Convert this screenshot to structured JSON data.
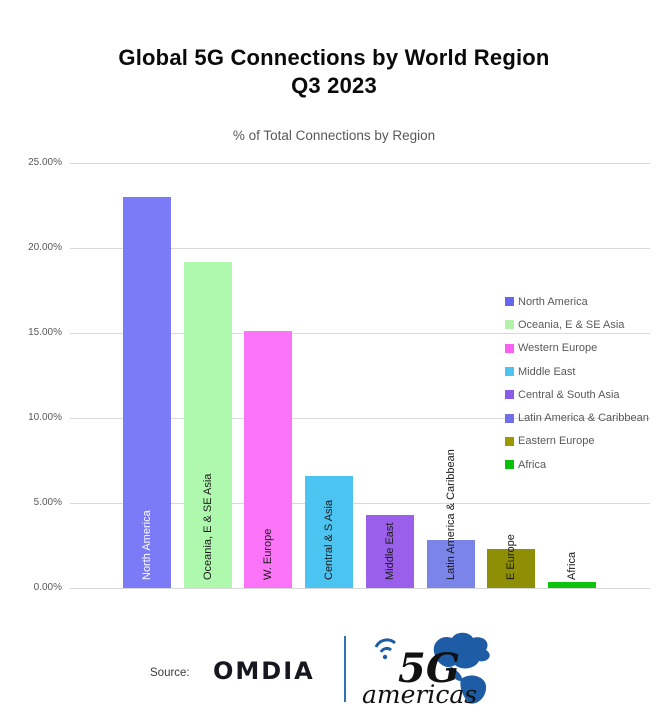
{
  "title": {
    "line1": "Global 5G Connections by World Region",
    "line2": "Q3 2023"
  },
  "subtitle": "% of Total Connections by Region",
  "chart_data": {
    "type": "bar",
    "title": "Global 5G Connections by World Region Q3 2023",
    "subtitle": "% of Total Connections by Region",
    "xlabel": "",
    "ylabel": "",
    "ylim": [
      0,
      25
    ],
    "ytick_step": 5,
    "yticks": [
      "0.00%",
      "5.00%",
      "10.00%",
      "15.00%",
      "20.00%",
      "25.00%"
    ],
    "grid": true,
    "legend_position": "right-overlay",
    "categories": [
      "North America",
      "Oceania, E & SE Asia",
      "W. Europe",
      "Central & S Asia",
      "Middle East",
      "Latin America & Caribbean",
      "E Europe",
      "Africa"
    ],
    "values": [
      23.0,
      19.2,
      15.1,
      6.6,
      4.3,
      2.8,
      2.3,
      0.35
    ],
    "bars": [
      {
        "label": "North America",
        "value": 23.0,
        "color": "#7b7bf8",
        "label_color": "#ffffff"
      },
      {
        "label": "Oceania, E & SE Asia",
        "value": 19.2,
        "color": "#aef9ad",
        "label_color": "#1a1a1a"
      },
      {
        "label": "W. Europe",
        "value": 15.1,
        "color": "#fb74f7",
        "label_color": "#1a1a1a"
      },
      {
        "label": "Central & S Asia",
        "value": 6.6,
        "color": "#4bc4f2",
        "label_color": "#1a1a1a"
      },
      {
        "label": "Middle East",
        "value": 4.3,
        "color": "#9a60eb",
        "label_color": "#1a1a1a"
      },
      {
        "label": "Latin America & Caribbean",
        "value": 2.8,
        "color": "#7b85e9",
        "label_color": "#1a1a1a"
      },
      {
        "label": "E Europe",
        "value": 2.3,
        "color": "#8f8f05",
        "label_color": "#1a1a1a"
      },
      {
        "label": "Africa",
        "value": 0.35,
        "color": "#0ec30e",
        "label_color": "#1a1a1a"
      }
    ],
    "legend": [
      {
        "label": "North America",
        "color": "#6566e9"
      },
      {
        "label": "Oceania, E & SE Asia",
        "color": "#b2f2a8"
      },
      {
        "label": "Western Europe",
        "color": "#f861f1"
      },
      {
        "label": "Middle East",
        "color": "#4fc3f0"
      },
      {
        "label": "Central & South Asia",
        "color": "#8a5be8"
      },
      {
        "label": "Latin America & Caribbean",
        "color": "#6f6fe8"
      },
      {
        "label": "Eastern Europe",
        "color": "#9c9800"
      },
      {
        "label": "Africa",
        "color": "#0abf0a"
      }
    ]
  },
  "footer": {
    "source_label": "Source:",
    "omdia_logo_text": "OMDIA",
    "americas_logo_5g": "5G",
    "americas_logo_americas": "americas"
  },
  "colors": {
    "grid": "#d9d9d9",
    "axis_text": "#595959",
    "legend_text": "#595959",
    "title": "#0a0a0a",
    "subtitle": "#595959",
    "divider_blue": "#2e74b5",
    "logo_blue": "#1e5ca5"
  }
}
